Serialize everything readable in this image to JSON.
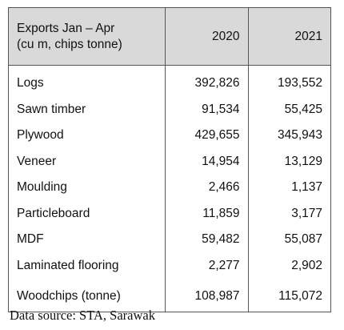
{
  "table": {
    "header": {
      "label_line1": "Exports Jan – Apr",
      "label_line2": "(cu m, chips tonne)",
      "col1": "2020",
      "col2": "2021"
    },
    "rows": [
      {
        "label": "Logs",
        "v2020": "392,826",
        "v2021": "193,552"
      },
      {
        "label": "Sawn timber",
        "v2020": "91,534",
        "v2021": "55,425"
      },
      {
        "label": "Plywood",
        "v2020": "429,655",
        "v2021": "345,943"
      },
      {
        "label": "Veneer",
        "v2020": "14,954",
        "v2021": "13,129"
      },
      {
        "label": "Moulding",
        "v2020": "2,466",
        "v2021": "1,137"
      },
      {
        "label": "Particleboard",
        "v2020": "11,859",
        "v2021": "3,177"
      },
      {
        "label": "MDF",
        "v2020": "59,482",
        "v2021": "55,087"
      },
      {
        "label": "Laminated flooring",
        "v2020": "2,277",
        "v2021": "2,902"
      },
      {
        "label": "Woodchips (tonne)",
        "v2020": "108,987",
        "v2021": "115,072"
      }
    ]
  },
  "source": "Data source: STA, Sarawak"
}
